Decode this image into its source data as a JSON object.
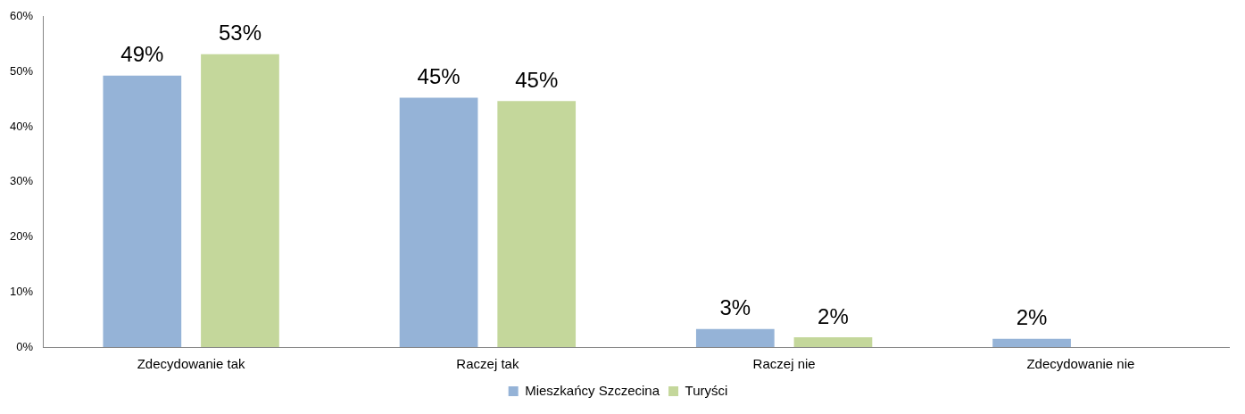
{
  "chart_data": {
    "type": "bar",
    "categories": [
      "Zdecydowanie tak",
      "Raczej tak",
      "Raczej nie",
      "Zdecydowanie nie"
    ],
    "series": [
      {
        "name": "Mieszkańcy Szczecina",
        "color": "#95b3d7",
        "values": [
          49.3,
          45.3,
          3.3,
          1.5
        ],
        "value_labels": [
          "49%",
          "45%",
          "3%",
          "2%"
        ]
      },
      {
        "name": "Turyści",
        "color": "#c4d79b",
        "values": [
          53.2,
          44.7,
          1.8,
          null
        ],
        "value_labels": [
          "53%",
          "45%",
          "2%",
          null
        ]
      }
    ],
    "ylim": [
      0,
      60
    ],
    "yticks": [
      {
        "value": 0,
        "label": "0%"
      },
      {
        "value": 10,
        "label": "10%"
      },
      {
        "value": 20,
        "label": "20%"
      },
      {
        "value": 30,
        "label": "30%"
      },
      {
        "value": 40,
        "label": "40%"
      },
      {
        "value": 50,
        "label": "50%"
      },
      {
        "value": 60,
        "label": "60%"
      }
    ],
    "grid": false,
    "legend": "bottom"
  }
}
